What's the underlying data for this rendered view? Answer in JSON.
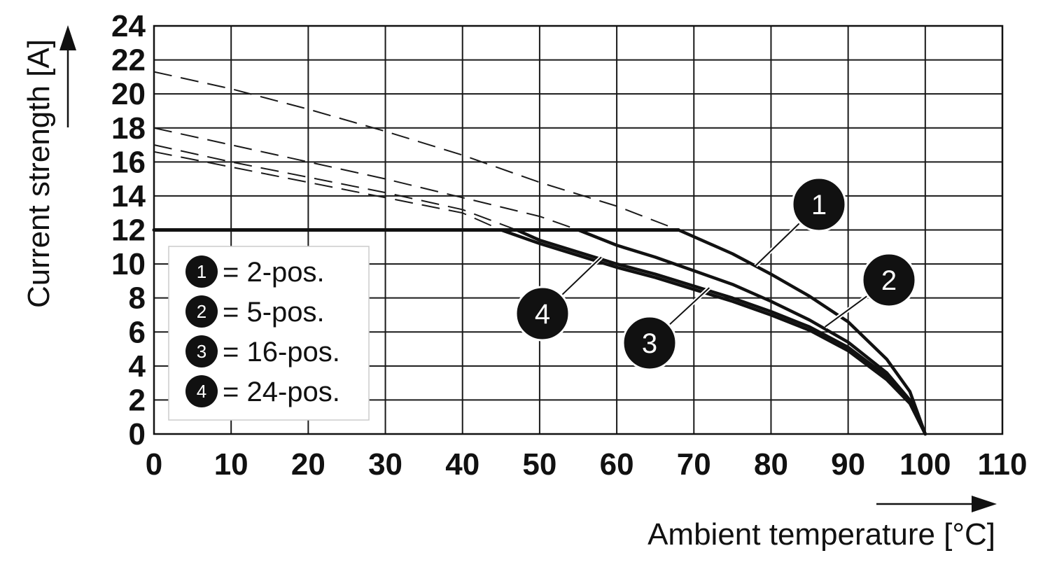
{
  "chart_data": {
    "type": "line",
    "xlabel": "Ambient temperature [°C]",
    "ylabel": "Current strength [A]",
    "xlim": [
      0,
      110
    ],
    "ylim": [
      0,
      24
    ],
    "x_ticks": [
      "0",
      "10",
      "20",
      "30",
      "40",
      "50",
      "60",
      "70",
      "80",
      "90",
      "100",
      "110"
    ],
    "y_ticks": [
      "0",
      "2",
      "4",
      "6",
      "8",
      "10",
      "12",
      "14",
      "16",
      "18",
      "20",
      "22",
      "24"
    ],
    "grid": true,
    "legend_position": "bottom-left",
    "legend": [
      {
        "marker": "1",
        "label": "= 2-pos."
      },
      {
        "marker": "2",
        "label": "= 5-pos."
      },
      {
        "marker": "3",
        "label": "= 16-pos."
      },
      {
        "marker": "4",
        "label": "= 24-pos."
      }
    ],
    "current_limit": {
      "value": 12,
      "x": [
        0,
        68
      ]
    },
    "series": [
      {
        "marker": "1",
        "values": [
          [
            68,
            12
          ],
          [
            70,
            11.6
          ],
          [
            75,
            10.6
          ],
          [
            80,
            9.4
          ],
          [
            85,
            8.1
          ],
          [
            90,
            6.6
          ],
          [
            95,
            4.4
          ],
          [
            98,
            2.5
          ],
          [
            100,
            0
          ]
        ],
        "extrapolation": [
          [
            0,
            21.3
          ],
          [
            10,
            20.3
          ],
          [
            20,
            19.1
          ],
          [
            30,
            17.8
          ],
          [
            40,
            16.4
          ],
          [
            50,
            14.8
          ],
          [
            60,
            13.4
          ],
          [
            68,
            12
          ]
        ]
      },
      {
        "marker": "2",
        "values": [
          [
            55,
            12
          ],
          [
            60,
            11.1
          ],
          [
            65,
            10.4
          ],
          [
            70,
            9.6
          ],
          [
            75,
            8.8
          ],
          [
            80,
            7.8
          ],
          [
            85,
            6.7
          ],
          [
            90,
            5.4
          ],
          [
            95,
            3.6
          ],
          [
            98,
            2
          ],
          [
            100,
            0
          ]
        ],
        "extrapolation": [
          [
            0,
            18
          ],
          [
            10,
            17
          ],
          [
            20,
            16
          ],
          [
            30,
            15
          ],
          [
            40,
            13.9
          ],
          [
            50,
            12.8
          ],
          [
            55,
            12
          ]
        ]
      },
      {
        "marker": "3",
        "values": [
          [
            47,
            12
          ],
          [
            50,
            11.4
          ],
          [
            55,
            10.7
          ],
          [
            60,
            10
          ],
          [
            65,
            9.4
          ],
          [
            70,
            8.7
          ],
          [
            75,
            8
          ],
          [
            80,
            7.2
          ],
          [
            85,
            6.3
          ],
          [
            90,
            5.1
          ],
          [
            95,
            3.4
          ],
          [
            98,
            1.9
          ],
          [
            100,
            0
          ]
        ],
        "extrapolation": [
          [
            0,
            17
          ],
          [
            10,
            16
          ],
          [
            20,
            15.1
          ],
          [
            30,
            14.2
          ],
          [
            40,
            13.2
          ],
          [
            47,
            12
          ]
        ]
      },
      {
        "marker": "4",
        "values": [
          [
            45,
            12
          ],
          [
            50,
            11.2
          ],
          [
            55,
            10.5
          ],
          [
            60,
            9.8
          ],
          [
            65,
            9.2
          ],
          [
            70,
            8.5
          ],
          [
            75,
            7.8
          ],
          [
            80,
            7
          ],
          [
            85,
            6.1
          ],
          [
            90,
            4.9
          ],
          [
            95,
            3.2
          ],
          [
            98,
            1.8
          ],
          [
            100,
            0
          ]
        ],
        "extrapolation": [
          [
            0,
            16.6
          ],
          [
            10,
            15.7
          ],
          [
            20,
            14.8
          ],
          [
            30,
            13.9
          ],
          [
            40,
            13
          ],
          [
            45,
            12
          ]
        ]
      }
    ],
    "callouts": [
      {
        "marker": "1",
        "point": [
          78,
          9.9
        ]
      },
      {
        "marker": "2",
        "point": [
          87,
          6.3
        ]
      },
      {
        "marker": "3",
        "point": [
          72,
          8.6
        ]
      },
      {
        "marker": "4",
        "point": [
          58,
          10.4
        ]
      }
    ]
  }
}
